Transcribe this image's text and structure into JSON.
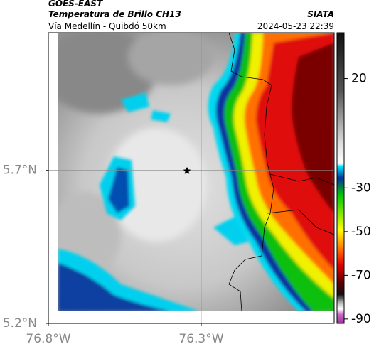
{
  "header": {
    "source": "GOES-EAST",
    "title": "Temperatura de Brillo CH13",
    "subtitle": "Vía Medellín - Quibdó 50km",
    "org": "SIATA",
    "timestamp": "2024-05-23 22:39"
  },
  "map": {
    "xlim": [
      -76.8,
      -75.865
    ],
    "ylim": [
      5.2,
      6.15
    ],
    "xticks": [
      {
        "value": -76.8,
        "label": "76.8°W"
      },
      {
        "value": -76.3,
        "label": "76.3°W"
      }
    ],
    "yticks": [
      {
        "value": 5.2,
        "label": "5.2°N"
      },
      {
        "value": 5.7,
        "label": "5.7°N"
      }
    ],
    "grid": true
  },
  "colorbar": {
    "lim": [
      -92,
      41
    ],
    "ticks": [
      20,
      -30,
      -50,
      -70,
      -90
    ]
  }
}
